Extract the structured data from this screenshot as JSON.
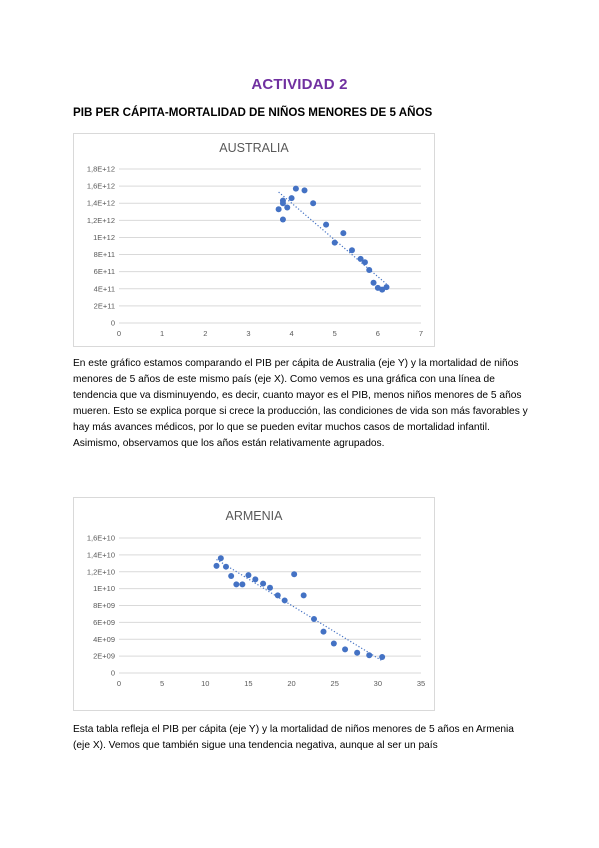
{
  "page": {
    "heading": "ACTIVIDAD 2",
    "subtitle": "PIB PER CÁPITA-MORTALIDAD DE NIÑOS MENORES DE 5 AÑOS"
  },
  "chart_data": [
    {
      "type": "scatter",
      "title": "AUSTRALIA",
      "xlabel": "",
      "ylabel": "",
      "xlim": [
        0,
        7
      ],
      "ylim": [
        0,
        1800000000000
      ],
      "x_ticks": [
        "0",
        "1",
        "2",
        "3",
        "4",
        "5",
        "6",
        "7"
      ],
      "y_ticks": [
        "0",
        "2E+11",
        "4E+11",
        "6E+11",
        "8E+11",
        "1E+12",
        "1,2E+12",
        "1,4E+12",
        "1,6E+12",
        "1,8E+12"
      ],
      "grid": "horizontal",
      "trendline": "linear-dotted",
      "series": [
        {
          "x": [
            6.2,
            6.1,
            6.0,
            5.9,
            5.8,
            5.7,
            5.6,
            5.4,
            5.2,
            5.0,
            4.8,
            4.5,
            4.3,
            4.1,
            4.0,
            3.9,
            3.8,
            3.8,
            3.8,
            3.7
          ],
          "y": [
            420000000000.0,
            390000000000.0,
            410000000000.0,
            470000000000.0,
            620000000000.0,
            710000000000.0,
            750000000000.0,
            850000000000.0,
            1050000000000.0,
            940000000000.0,
            1150000000000.0,
            1400000000000.0,
            1550000000000.0,
            1570000000000.0,
            1460000000000.0,
            1350000000000.0,
            1400000000000.0,
            1430000000000.0,
            1210000000000.0,
            1330000000000.0
          ]
        }
      ]
    },
    {
      "type": "scatter",
      "title": "ARMENIA",
      "xlabel": "",
      "ylabel": "",
      "xlim": [
        0,
        35
      ],
      "ylim": [
        0,
        16000000000
      ],
      "x_ticks": [
        "0",
        "5",
        "10",
        "15",
        "20",
        "25",
        "30",
        "35"
      ],
      "y_ticks": [
        "0",
        "2E+09",
        "4E+09",
        "6E+09",
        "8E+09",
        "1E+10",
        "1,2E+10",
        "1,4E+10",
        "1,6E+10"
      ],
      "grid": "horizontal",
      "trendline": "linear-dotted",
      "series": [
        {
          "x": [
            11.3,
            11.8,
            12.4,
            13.0,
            13.6,
            14.3,
            15.0,
            15.8,
            16.7,
            17.5,
            18.4,
            19.2,
            20.3,
            21.4,
            22.6,
            23.7,
            24.9,
            26.2,
            27.6,
            29.0,
            30.5
          ],
          "y": [
            12700000000.0,
            13600000000.0,
            12600000000.0,
            11500000000.0,
            10500000000.0,
            10500000000.0,
            11600000000.0,
            11100000000.0,
            10600000000.0,
            10100000000.0,
            9200000000.0,
            8600000000.0,
            11700000000.0,
            9200000000.0,
            6400000000.0,
            4900000000.0,
            3500000000.0,
            2800000000.0,
            2400000000.0,
            2100000000.0,
            1900000000.0
          ]
        }
      ]
    }
  ],
  "paragraphs": {
    "australia": "En este gráfico estamos comparando el PIB per cápita de Australia (eje Y) y la mortalidad de niños menores de 5 años de este mismo país (eje X). Como vemos es una gráfica con una línea de tendencia que va disminuyendo, es decir, cuanto mayor es el PIB, menos niños menores de 5 años mueren. Esto se explica porque si crece la producción, las condiciones de vida son más favorables y hay más avances médicos, por lo que se pueden evitar muchos casos de mortalidad infantil. Asimismo, observamos que los años están relativamente agrupados.",
    "armenia": "Esta tabla refleja el PIB per cápita (eje Y) y la mortalidad de niños menores de 5 años en Armenia (eje X). Vemos que también sigue una tendencia negativa, aunque al ser un país"
  },
  "colors": {
    "heading": "#7030a0",
    "marker": "#4472c4",
    "grid": "#d9d9d9",
    "axis_text": "#595959"
  }
}
